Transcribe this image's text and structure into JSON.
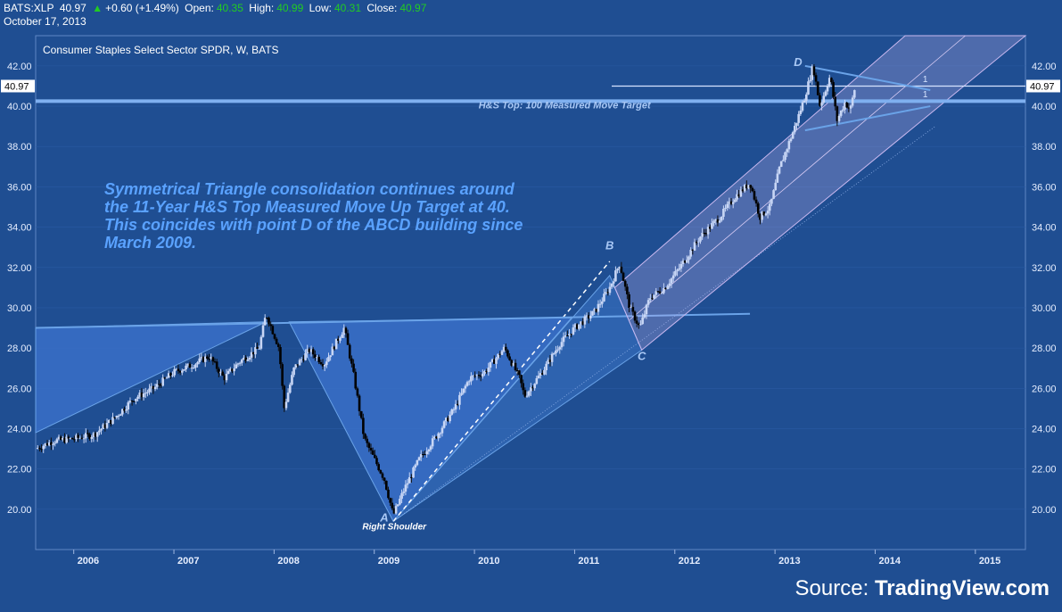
{
  "header": {
    "symbol": "BATS:XLP",
    "last": "40.97",
    "change": "+0.60 (+1.49%)",
    "open_label": "Open:",
    "open": "40.35",
    "high_label": "High:",
    "high": "40.99",
    "low_label": "Low:",
    "low": "40.31",
    "close_label": "Close:",
    "close": "40.97",
    "date": "October 17, 2013"
  },
  "source": {
    "label": "Source:",
    "name": "TradingView.com"
  },
  "chart_data": {
    "type": "candlestick",
    "title": "Consumer Staples Select Sector SPDR, W, BATS",
    "x_tick_labels": [
      "2006",
      "2007",
      "2008",
      "2009",
      "2010",
      "2011",
      "2012",
      "2013",
      "2014",
      "2015"
    ],
    "y_tick_labels": [
      "20.00",
      "22.00",
      "24.00",
      "26.00",
      "28.00",
      "30.00",
      "32.00",
      "34.00",
      "36.00",
      "38.00",
      "40.00",
      "42.00"
    ],
    "x_range": [
      2005.62,
      2015.5
    ],
    "y_range": [
      18.0,
      43.5
    ],
    "last_price_label": "40.97",
    "colors": {
      "background": "#1f4e92",
      "up_candle": "#c8d6f5",
      "down_candle": "#000000",
      "drawing": "#6aa3e8",
      "triangle_fill": "#3a70c8"
    },
    "weekly_close_path": [
      [
        2005.62,
        23.0
      ],
      [
        2005.8,
        23.4
      ],
      [
        2006.0,
        23.5
      ],
      [
        2006.2,
        23.7
      ],
      [
        2006.4,
        24.5
      ],
      [
        2006.6,
        25.5
      ],
      [
        2006.8,
        26.0
      ],
      [
        2007.0,
        26.8
      ],
      [
        2007.2,
        27.2
      ],
      [
        2007.35,
        27.6
      ],
      [
        2007.5,
        26.5
      ],
      [
        2007.65,
        27.3
      ],
      [
        2007.85,
        28.0
      ],
      [
        2007.92,
        29.7
      ],
      [
        2008.05,
        28.0
      ],
      [
        2008.1,
        25.0
      ],
      [
        2008.2,
        27.0
      ],
      [
        2008.35,
        27.9
      ],
      [
        2008.5,
        27.2
      ],
      [
        2008.7,
        29.0
      ],
      [
        2008.8,
        26.5
      ],
      [
        2008.9,
        23.5
      ],
      [
        2009.1,
        21.5
      ],
      [
        2009.19,
        19.7
      ],
      [
        2009.3,
        21.0
      ],
      [
        2009.45,
        22.5
      ],
      [
        2009.6,
        23.5
      ],
      [
        2009.8,
        25.0
      ],
      [
        2009.95,
        26.5
      ],
      [
        2010.1,
        26.8
      ],
      [
        2010.3,
        28.0
      ],
      [
        2010.45,
        26.5
      ],
      [
        2010.5,
        25.6
      ],
      [
        2010.7,
        27.0
      ],
      [
        2010.85,
        28.2
      ],
      [
        2011.0,
        29.0
      ],
      [
        2011.2,
        29.8
      ],
      [
        2011.35,
        31.0
      ],
      [
        2011.45,
        32.2
      ],
      [
        2011.55,
        30.0
      ],
      [
        2011.65,
        29.0
      ],
      [
        2011.75,
        30.5
      ],
      [
        2011.9,
        31.0
      ],
      [
        2012.05,
        32.0
      ],
      [
        2012.25,
        33.5
      ],
      [
        2012.45,
        34.5
      ],
      [
        2012.6,
        35.5
      ],
      [
        2012.75,
        36.2
      ],
      [
        2012.85,
        34.5
      ],
      [
        2012.95,
        35.0
      ],
      [
        2013.05,
        37.0
      ],
      [
        2013.2,
        39.0
      ],
      [
        2013.3,
        40.5
      ],
      [
        2013.38,
        42.0
      ],
      [
        2013.45,
        40.0
      ],
      [
        2013.55,
        41.5
      ],
      [
        2013.62,
        39.3
      ],
      [
        2013.7,
        40.2
      ],
      [
        2013.75,
        39.8
      ],
      [
        2013.8,
        40.97
      ]
    ],
    "annotations": [
      {
        "text": "H&S Top: 100 Measured Move Target",
        "x": 2010.9,
        "y": 40.25
      },
      {
        "text": "Right Shoulder",
        "x": 2009.2,
        "y": 19.0
      },
      {
        "text": "A",
        "x": 2009.1,
        "y": 19.4
      },
      {
        "text": "B",
        "x": 2011.35,
        "y": 32.9
      },
      {
        "text": "C",
        "x": 2011.67,
        "y": 27.4
      },
      {
        "text": "D",
        "x": 2013.23,
        "y": 42.0
      },
      {
        "text": "1",
        "x": 2014.5,
        "y": 41.2
      },
      {
        "text": "1",
        "x": 2014.5,
        "y": 40.45
      }
    ],
    "note_lines": [
      "Symmetrical Triangle consolidation continues around",
      "the 11-Year H&S Top Measured Move Up Target at 40.",
      "This coincides with point D of the ABCD building since",
      "March 2009."
    ]
  }
}
